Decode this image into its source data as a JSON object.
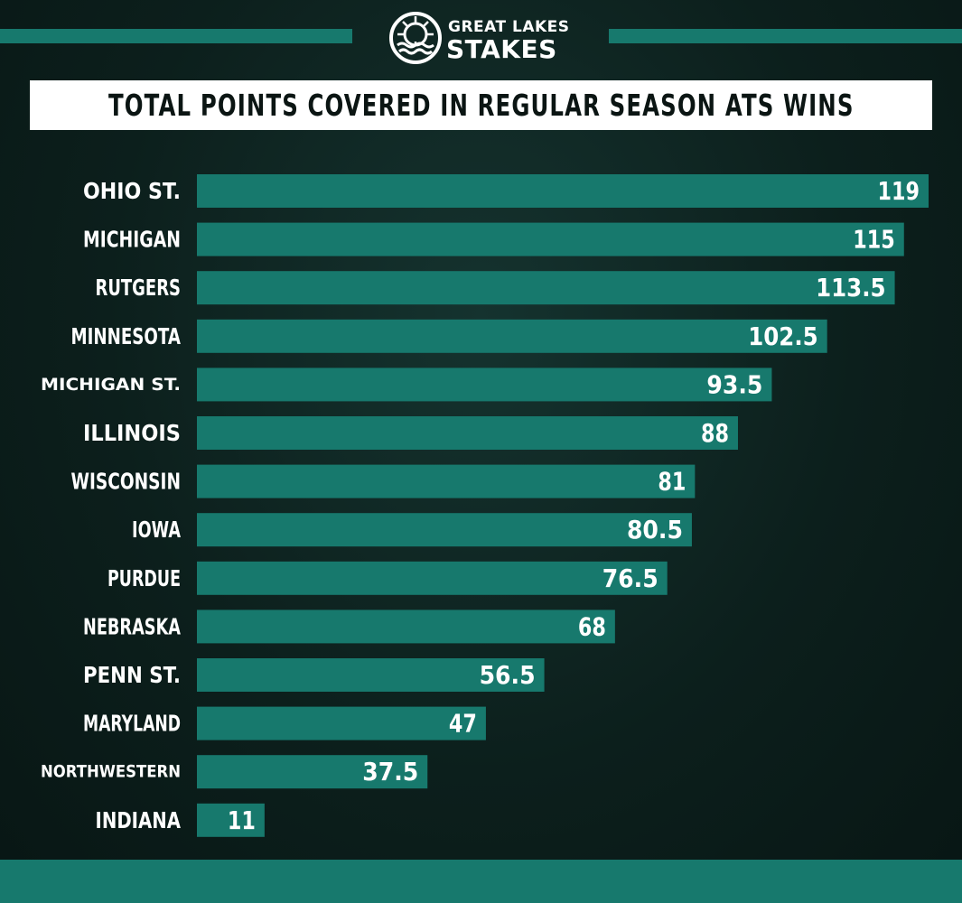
{
  "brand": {
    "line1": "GREAT LAKES",
    "line2": "STAKES",
    "logo_icon": "waves-wheel-icon"
  },
  "colors": {
    "bar": "#17796d",
    "text": "#ffffff",
    "title_bg": "#ffffff",
    "title_text": "#0b1513"
  },
  "chart_data": {
    "type": "bar",
    "orientation": "horizontal",
    "title": "TOTAL POINTS COVERED IN REGULAR SEASON ATS WINS",
    "xlabel": "",
    "ylabel": "",
    "grid": false,
    "legend": "none",
    "xlim": [
      0,
      119
    ],
    "categories": [
      "OHIO ST.",
      "MICHIGAN",
      "RUTGERS",
      "MINNESOTA",
      "MICHIGAN ST.",
      "ILLINOIS",
      "WISCONSIN",
      "IOWA",
      "PURDUE",
      "NEBRASKA",
      "PENN ST.",
      "MARYLAND",
      "NORTHWESTERN",
      "INDIANA"
    ],
    "values": [
      119,
      115,
      113.5,
      102.5,
      93.5,
      88,
      81,
      80.5,
      76.5,
      68,
      56.5,
      47,
      37.5,
      11
    ],
    "data_labels": [
      "119",
      "115",
      "113.5",
      "102.5",
      "93.5",
      "88",
      "81",
      "80.5",
      "76.5",
      "68",
      "56.5",
      "47",
      "37.5",
      "11"
    ]
  }
}
